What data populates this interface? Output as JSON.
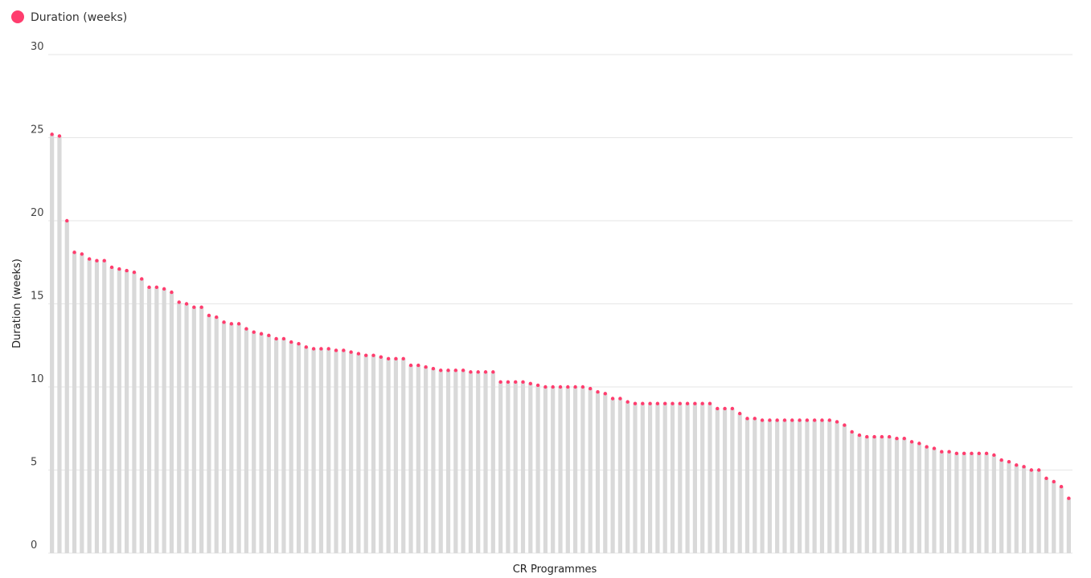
{
  "chart_data": {
    "type": "bar",
    "legend": "Duration (weeks)",
    "ylabel": "Duration (weeks)",
    "xlabel": "CR Programmes",
    "bar_color": "#d9d9d9",
    "color": "#ff3d6e",
    "grid": true,
    "ylim": [
      0,
      30
    ],
    "yticks": [
      0,
      5,
      10,
      15,
      20,
      25,
      30
    ],
    "values": [
      25.2,
      25.1,
      20.0,
      18.1,
      18.0,
      17.7,
      17.6,
      17.6,
      17.2,
      17.1,
      17.0,
      16.9,
      16.5,
      16.0,
      16.0,
      15.9,
      15.7,
      15.1,
      15.0,
      14.8,
      14.8,
      14.3,
      14.2,
      13.9,
      13.8,
      13.8,
      13.5,
      13.3,
      13.2,
      13.1,
      12.9,
      12.9,
      12.7,
      12.6,
      12.4,
      12.3,
      12.3,
      12.3,
      12.2,
      12.2,
      12.1,
      12.0,
      11.9,
      11.9,
      11.8,
      11.7,
      11.7,
      11.7,
      11.3,
      11.3,
      11.2,
      11.1,
      11.0,
      11.0,
      11.0,
      11.0,
      10.9,
      10.9,
      10.9,
      10.9,
      10.3,
      10.3,
      10.3,
      10.3,
      10.2,
      10.1,
      10.0,
      10.0,
      10.0,
      10.0,
      10.0,
      10.0,
      9.9,
      9.7,
      9.6,
      9.3,
      9.3,
      9.1,
      9.0,
      9.0,
      9.0,
      9.0,
      9.0,
      9.0,
      9.0,
      9.0,
      9.0,
      9.0,
      9.0,
      8.7,
      8.7,
      8.7,
      8.4,
      8.1,
      8.1,
      8.0,
      8.0,
      8.0,
      8.0,
      8.0,
      8.0,
      8.0,
      8.0,
      8.0,
      8.0,
      7.9,
      7.7,
      7.3,
      7.1,
      7.0,
      7.0,
      7.0,
      7.0,
      6.9,
      6.9,
      6.7,
      6.6,
      6.4,
      6.3,
      6.1,
      6.1,
      6.0,
      6.0,
      6.0,
      6.0,
      6.0,
      5.9,
      5.6,
      5.5,
      5.3,
      5.2,
      5.0,
      5.0,
      4.5,
      4.3,
      4.0,
      3.3
    ]
  }
}
